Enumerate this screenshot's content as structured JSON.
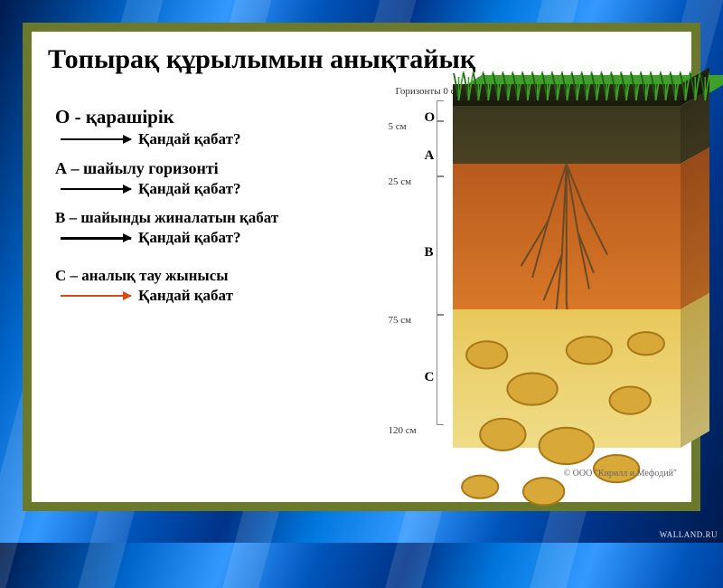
{
  "title": "Топырақ құрылымын анықтайық",
  "title_fontsize": 30,
  "title_color": "#000000",
  "entries": [
    {
      "heading": "О - қарашірік",
      "heading_fontsize": 21,
      "sub": "Қандай қабат?",
      "sub_fontsize": 17,
      "arrow_color": "black",
      "arrow_thick": false
    },
    {
      "heading": "А – шайылу горизонті",
      "heading_fontsize": 18,
      "sub": "Қандай қабат?",
      "sub_fontsize": 17,
      "arrow_color": "black",
      "arrow_thick": false
    },
    {
      "heading": "В – шайынды жиналатын қабат",
      "heading_fontsize": 17,
      "sub": "Қандай қабат?",
      "sub_fontsize": 17,
      "arrow_color": "black",
      "arrow_thick": true
    },
    {
      "heading": "С – аналық тау жынысы",
      "heading_fontsize": 17,
      "sub": "Қандай қабат",
      "sub_fontsize": 17,
      "arrow_color": "red",
      "arrow_thick": false
    }
  ],
  "scale_title": "Горизонты 0 см",
  "depth_marks": [
    {
      "label": "5 см",
      "pct": 6
    },
    {
      "label": "25 см",
      "pct": 22
    },
    {
      "label": "75 см",
      "pct": 62
    },
    {
      "label": "120 см",
      "pct": 94
    }
  ],
  "horizon_letters": [
    {
      "letter": "O",
      "pct": 3
    },
    {
      "letter": "A",
      "pct": 14
    },
    {
      "letter": "B",
      "pct": 42
    },
    {
      "letter": "C",
      "pct": 78
    }
  ],
  "layers": [
    {
      "name": "O",
      "top_pct": 0,
      "bottom_pct": 6,
      "color_top": "#2a2a16",
      "color_bot": "#1a1a0c"
    },
    {
      "name": "A",
      "top_pct": 6,
      "bottom_pct": 22,
      "color_top": "#3a3820",
      "color_bot": "#4a4122"
    },
    {
      "name": "B",
      "top_pct": 22,
      "bottom_pct": 62,
      "color_top": "#b85a1e",
      "color_bot": "#d87828"
    },
    {
      "name": "C",
      "top_pct": 62,
      "bottom_pct": 100,
      "color_top": "#e8c85a",
      "color_bot": "#f0dc88"
    }
  ],
  "grass_color": "#3ea028",
  "grass_dark": "#1e6014",
  "root_color": "#6b4a24",
  "pebble_color": "#d8a838",
  "pebble_outline": "#a87818",
  "background_white": "#ffffff",
  "frame_color": "#6b7a2a",
  "credit": "© ООО \"Кирилл и Мефодий\"",
  "watermark": "WALLAND.RU"
}
